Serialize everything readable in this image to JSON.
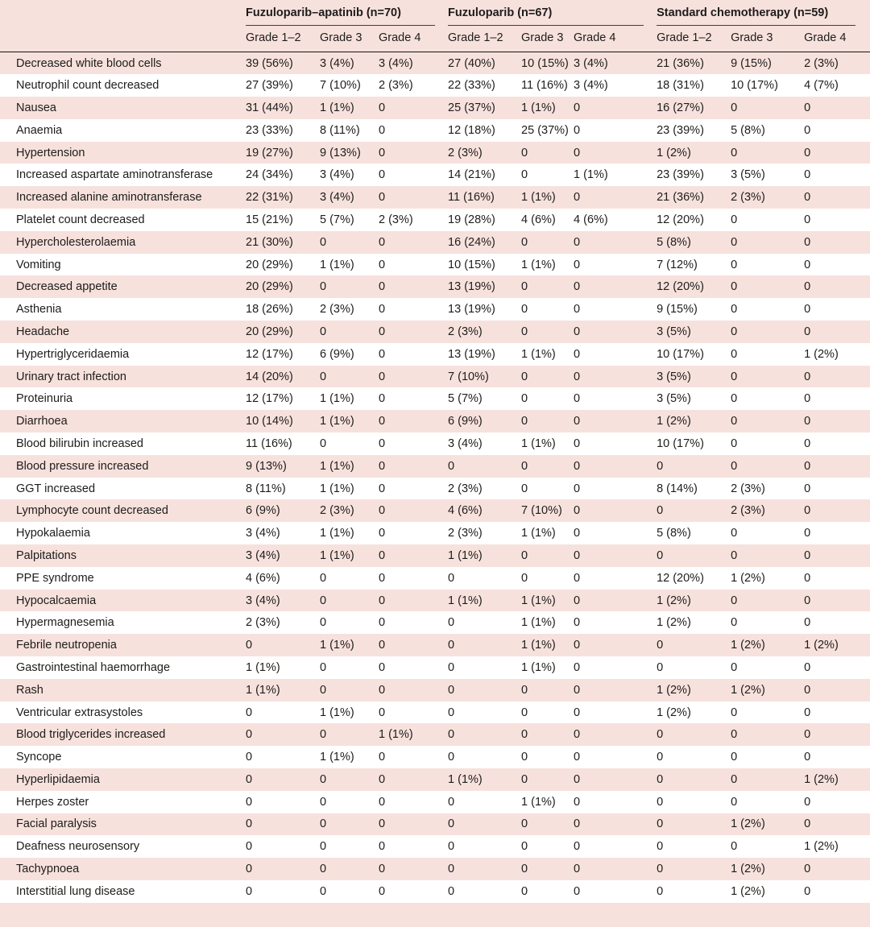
{
  "table": {
    "groups": [
      {
        "label": "Fuzuloparib–apatinib (n=70)"
      },
      {
        "label": "Fuzuloparib (n=67)"
      },
      {
        "label": "Standard chemotherapy (n=59)"
      }
    ],
    "grade_headers": [
      "Grade 1–2",
      "Grade 3",
      "Grade 4"
    ],
    "rows": [
      {
        "label": "Decreased white blood cells",
        "values": [
          "39 (56%)",
          "3 (4%)",
          "3 (4%)",
          "27 (40%)",
          "10 (15%)",
          "3 (4%)",
          "21 (36%)",
          "9 (15%)",
          "2 (3%)"
        ]
      },
      {
        "label": "Neutrophil count decreased",
        "values": [
          "27 (39%)",
          "7 (10%)",
          "2 (3%)",
          "22 (33%)",
          "11 (16%)",
          "3 (4%)",
          "18 (31%)",
          "10 (17%)",
          "4 (7%)"
        ]
      },
      {
        "label": "Nausea",
        "values": [
          "31 (44%)",
          "1 (1%)",
          "0",
          "25 (37%)",
          "1 (1%)",
          "0",
          "16 (27%)",
          "0",
          "0"
        ]
      },
      {
        "label": "Anaemia",
        "values": [
          "23 (33%)",
          "8 (11%)",
          "0",
          "12 (18%)",
          "25 (37%)",
          "0",
          "23 (39%)",
          "5 (8%)",
          "0"
        ]
      },
      {
        "label": "Hypertension",
        "values": [
          "19 (27%)",
          "9 (13%)",
          "0",
          "2 (3%)",
          "0",
          "0",
          "1 (2%)",
          "0",
          "0"
        ]
      },
      {
        "label": "Increased aspartate aminotransferase",
        "values": [
          "24 (34%)",
          "3 (4%)",
          "0",
          "14 (21%)",
          "0",
          "1 (1%)",
          "23 (39%)",
          "3 (5%)",
          "0"
        ]
      },
      {
        "label": "Increased alanine aminotransferase",
        "values": [
          "22 (31%)",
          "3 (4%)",
          "0",
          "11 (16%)",
          "1 (1%)",
          "0",
          "21 (36%)",
          "2 (3%)",
          "0"
        ]
      },
      {
        "label": "Platelet count decreased",
        "values": [
          "15 (21%)",
          "5 (7%)",
          "2 (3%)",
          "19 (28%)",
          "4 (6%)",
          "4 (6%)",
          "12 (20%)",
          "0",
          "0"
        ]
      },
      {
        "label": "Hypercholesterolaemia",
        "values": [
          "21 (30%)",
          "0",
          "0",
          "16 (24%)",
          "0",
          "0",
          "5 (8%)",
          "0",
          "0"
        ]
      },
      {
        "label": "Vomiting",
        "values": [
          "20 (29%)",
          "1 (1%)",
          "0",
          "10 (15%)",
          "1 (1%)",
          "0",
          "7 (12%)",
          "0",
          "0"
        ]
      },
      {
        "label": "Decreased appetite",
        "values": [
          "20 (29%)",
          "0",
          "0",
          "13 (19%)",
          "0",
          "0",
          "12 (20%)",
          "0",
          "0"
        ]
      },
      {
        "label": "Asthenia",
        "values": [
          "18 (26%)",
          "2 (3%)",
          "0",
          "13 (19%)",
          "0",
          "0",
          "9 (15%)",
          "0",
          "0"
        ]
      },
      {
        "label": "Headache",
        "values": [
          "20 (29%)",
          "0",
          "0",
          "2 (3%)",
          "0",
          "0",
          "3 (5%)",
          "0",
          "0"
        ]
      },
      {
        "label": "Hypertriglyceridaemia",
        "values": [
          "12 (17%)",
          "6 (9%)",
          "0",
          "13 (19%)",
          "1 (1%)",
          "0",
          "10 (17%)",
          "0",
          "1 (2%)"
        ]
      },
      {
        "label": "Urinary tract infection",
        "values": [
          "14 (20%)",
          "0",
          "0",
          "7 (10%)",
          "0",
          "0",
          "3 (5%)",
          "0",
          "0"
        ]
      },
      {
        "label": "Proteinuria",
        "values": [
          "12 (17%)",
          "1 (1%)",
          "0",
          "5 (7%)",
          "0",
          "0",
          "3 (5%)",
          "0",
          "0"
        ]
      },
      {
        "label": "Diarrhoea",
        "values": [
          "10 (14%)",
          "1 (1%)",
          "0",
          "6 (9%)",
          "0",
          "0",
          "1 (2%)",
          "0",
          "0"
        ]
      },
      {
        "label": "Blood bilirubin increased",
        "values": [
          "11 (16%)",
          "0",
          "0",
          "3 (4%)",
          "1 (1%)",
          "0",
          "10 (17%)",
          "0",
          "0"
        ]
      },
      {
        "label": "Blood pressure increased",
        "values": [
          "9 (13%)",
          "1 (1%)",
          "0",
          "0",
          "0",
          "0",
          "0",
          "0",
          "0"
        ]
      },
      {
        "label": "GGT increased",
        "values": [
          "8 (11%)",
          "1 (1%)",
          "0",
          "2 (3%)",
          "0",
          "0",
          "8 (14%)",
          "2 (3%)",
          "0"
        ]
      },
      {
        "label": "Lymphocyte count decreased",
        "values": [
          "6 (9%)",
          "2 (3%)",
          "0",
          "4 (6%)",
          "7 (10%)",
          "0",
          "0",
          "2 (3%)",
          "0"
        ]
      },
      {
        "label": "Hypokalaemia",
        "values": [
          "3 (4%)",
          "1 (1%)",
          "0",
          "2 (3%)",
          "1 (1%)",
          "0",
          "5 (8%)",
          "0",
          "0"
        ]
      },
      {
        "label": "Palpitations",
        "values": [
          "3 (4%)",
          "1 (1%)",
          "0",
          "1 (1%)",
          "0",
          "0",
          "0",
          "0",
          "0"
        ]
      },
      {
        "label": "PPE syndrome",
        "values": [
          "4 (6%)",
          "0",
          "0",
          "0",
          "0",
          "0",
          "12 (20%)",
          "1 (2%)",
          "0"
        ]
      },
      {
        "label": "Hypocalcaemia",
        "values": [
          "3 (4%)",
          "0",
          "0",
          "1 (1%)",
          "1 (1%)",
          "0",
          "1 (2%)",
          "0",
          "0"
        ]
      },
      {
        "label": "Hypermagnesemia",
        "values": [
          "2 (3%)",
          "0",
          "0",
          "0",
          "1 (1%)",
          "0",
          "1 (2%)",
          "0",
          "0"
        ]
      },
      {
        "label": "Febrile neutropenia",
        "values": [
          "0",
          "1 (1%)",
          "0",
          "0",
          "1 (1%)",
          "0",
          "0",
          "1 (2%)",
          "1 (2%)"
        ]
      },
      {
        "label": "Gastrointestinal haemorrhage",
        "values": [
          "1 (1%)",
          "0",
          "0",
          "0",
          "1 (1%)",
          "0",
          "0",
          "0",
          "0"
        ]
      },
      {
        "label": "Rash",
        "values": [
          "1 (1%)",
          "0",
          "0",
          "0",
          "0",
          "0",
          "1 (2%)",
          "1 (2%)",
          "0"
        ]
      },
      {
        "label": "Ventricular extrasystoles",
        "values": [
          "0",
          "1 (1%)",
          "0",
          "0",
          "0",
          "0",
          "1 (2%)",
          "0",
          "0"
        ]
      },
      {
        "label": "Blood triglycerides increased",
        "values": [
          "0",
          "0",
          "1 (1%)",
          "0",
          "0",
          "0",
          "0",
          "0",
          "0"
        ]
      },
      {
        "label": "Syncope",
        "values": [
          "0",
          "1 (1%)",
          "0",
          "0",
          "0",
          "0",
          "0",
          "0",
          "0"
        ]
      },
      {
        "label": "Hyperlipidaemia",
        "values": [
          "0",
          "0",
          "0",
          "1 (1%)",
          "0",
          "0",
          "0",
          "0",
          "1 (2%)"
        ]
      },
      {
        "label": "Herpes zoster",
        "values": [
          "0",
          "0",
          "0",
          "0",
          "1 (1%)",
          "0",
          "0",
          "0",
          "0"
        ]
      },
      {
        "label": "Facial paralysis",
        "values": [
          "0",
          "0",
          "0",
          "0",
          "0",
          "0",
          "0",
          "1 (2%)",
          "0"
        ]
      },
      {
        "label": "Deafness neurosensory",
        "values": [
          "0",
          "0",
          "0",
          "0",
          "0",
          "0",
          "0",
          "0",
          "1 (2%)"
        ]
      },
      {
        "label": "Tachypnoea",
        "values": [
          "0",
          "0",
          "0",
          "0",
          "0",
          "0",
          "0",
          "1 (2%)",
          "0"
        ]
      },
      {
        "label": "Interstitial lung disease",
        "values": [
          "0",
          "0",
          "0",
          "0",
          "0",
          "0",
          "0",
          "1 (2%)",
          "0"
        ]
      }
    ]
  },
  "colors": {
    "stripe_pink": "#f7e1dd",
    "stripe_white": "#ffffff",
    "text": "#1d1d1b",
    "header_rule": "#151515",
    "group_rule": "#3f3f3f"
  }
}
